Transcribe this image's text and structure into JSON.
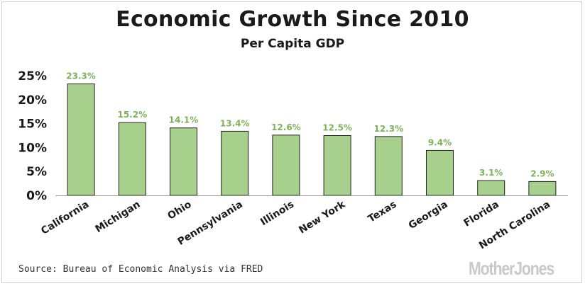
{
  "chart_data": {
    "type": "bar",
    "title": "Economic Growth Since 2010",
    "subtitle": "Per Capita GDP",
    "categories": [
      "California",
      "Michigan",
      "Ohio",
      "Pennsylvania",
      "Illinois",
      "New York",
      "Texas",
      "Georgia",
      "Florida",
      "North Carolina"
    ],
    "values": [
      23.3,
      15.2,
      14.1,
      13.4,
      12.6,
      12.5,
      12.3,
      9.4,
      3.1,
      2.9
    ],
    "data_labels": [
      "23.3%",
      "15.2%",
      "14.1%",
      "13.4%",
      "12.6%",
      "12.5%",
      "12.3%",
      "9.4%",
      "3.1%",
      "2.9%"
    ],
    "ylim": [
      0,
      25
    ],
    "yticks": [
      0,
      5,
      10,
      15,
      20,
      25
    ],
    "ytick_labels": [
      "0%",
      "5%",
      "10%",
      "15%",
      "20%",
      "25%"
    ],
    "xlabel": "",
    "ylabel": "",
    "grid": false,
    "colors": {
      "bar": "#a8d08d",
      "bar_edge": "#222222",
      "label": "#7fb15a",
      "axis": "#9a9a9a"
    }
  },
  "source": "Source: Bureau of Economic Analysis via FRED",
  "brand": "MotherJones"
}
